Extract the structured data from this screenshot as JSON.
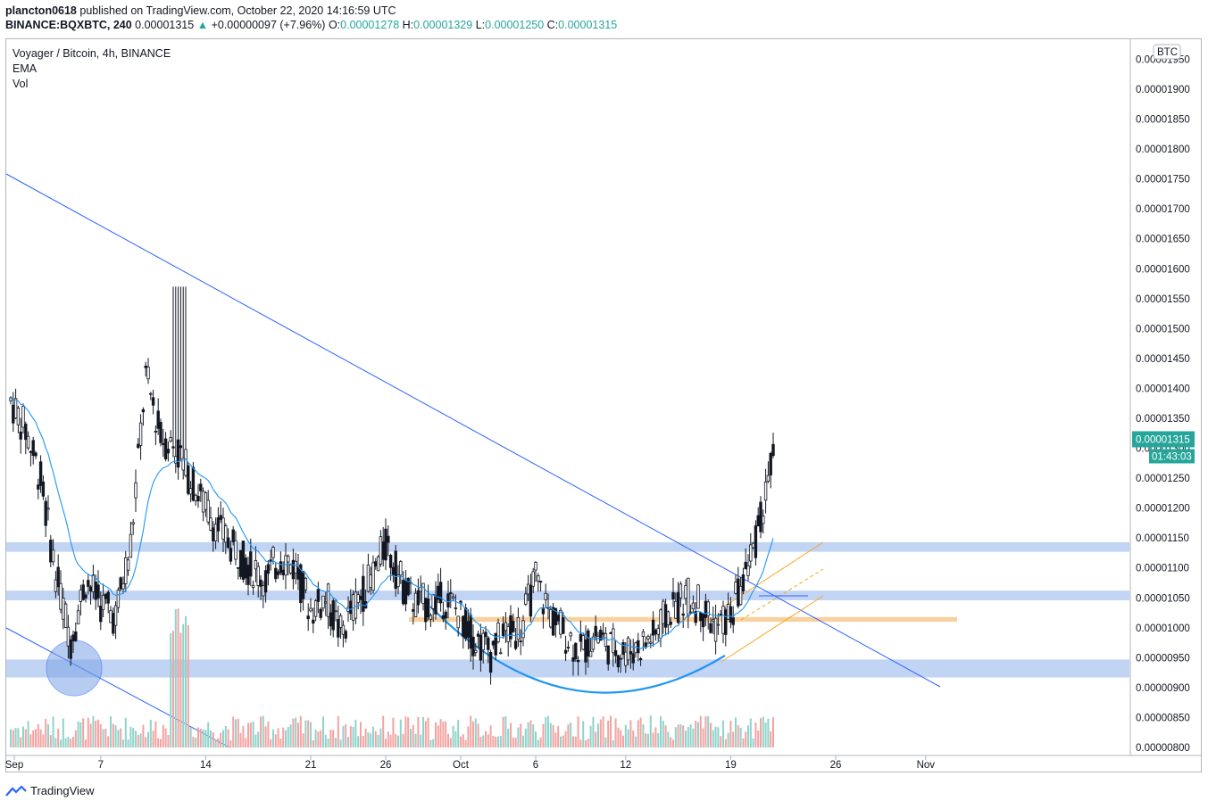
{
  "header": {
    "author": "plancton0618",
    "published_text": " published on TradingView.com, October 22, 2020 14:16:59 UTC",
    "symbol": "BINANCE:BQXBTC, 240",
    "last": "0.00001315",
    "change": "+0.00000097 (+7.96%)",
    "o_label": "O:",
    "o_val": "0.00001278",
    "h_label": "H:",
    "h_val": "0.00001329",
    "l_label": "L:",
    "l_val": "0.00001250",
    "c_label": "C:",
    "c_val": "0.00001315"
  },
  "legend": {
    "title": "Voyager / Bitcoin, 4h, BINANCE",
    "ema": "EMA",
    "vol": "Vol"
  },
  "footer": {
    "brand": "TradingView"
  },
  "price_axis": {
    "currency": "BTC",
    "price_tag": "0.00001315",
    "countdown": "01:43:03"
  },
  "colors": {
    "up": "#26a69a",
    "down": "#ef5350",
    "candle": "#131722",
    "trendline": "#2962ff",
    "ema": "#2196f3",
    "zone": "#aec6f0",
    "orange_zone": "#f7c98f"
  },
  "chart_data": {
    "type": "line",
    "title": "Voyager / Bitcoin, 4h, BINANCE",
    "y_ticks": [
      "0.00001950",
      "0.00001900",
      "0.00001850",
      "0.00001800",
      "0.00001750",
      "0.00001700",
      "0.00001650",
      "0.00001600",
      "0.00001550",
      "0.00001500",
      "0.00001450",
      "0.00001400",
      "0.00001350",
      "0.00001300",
      "0.00001250",
      "0.00001200",
      "0.00001150",
      "0.00001100",
      "0.00001050",
      "0.00001000",
      "0.00000950",
      "0.00000900",
      "0.00000850",
      "0.00000800"
    ],
    "x_ticks": [
      "Sep",
      "7",
      "14",
      "21",
      "26",
      "Oct",
      "6",
      "12",
      "19",
      "26",
      "Nov"
    ],
    "ylim": [
      7.95e-06,
      1.96e-05
    ],
    "grid": false,
    "series": [
      {
        "x": [
          "Sep 1",
          "Sep 2",
          "Sep 3",
          "Sep 4",
          "Sep 5",
          "Sep 6",
          "Sep 7",
          "Sep 8",
          "Sep 9",
          "Sep 10",
          "Sep 11",
          "Sep 12",
          "Sep 13",
          "Sep 14",
          "Sep 15",
          "Sep 16",
          "Sep 17",
          "Sep 18",
          "Sep 19",
          "Sep 20",
          "Sep 21",
          "Sep 22",
          "Sep 23",
          "Sep 24",
          "Sep 25",
          "Sep 26",
          "Sep 27",
          "Sep 28",
          "Sep 29",
          "Sep 30",
          "Oct 1",
          "Oct 2",
          "Oct 3",
          "Oct 4",
          "Oct 5",
          "Oct 6",
          "Oct 7",
          "Oct 8",
          "Oct 9",
          "Oct 10",
          "Oct 11",
          "Oct 12",
          "Oct 13",
          "Oct 14",
          "Oct 15",
          "Oct 16",
          "Oct 17",
          "Oct 18",
          "Oct 19",
          "Oct 20",
          "Oct 21",
          "Oct 22"
        ],
        "values": [
          1.38e-05,
          1.33e-05,
          1.25e-05,
          1.09e-05,
          9.8e-06,
          1.08e-05,
          1.04e-05,
          1.02e-05,
          1.14e-05,
          1.42e-05,
          1.32e-05,
          1.3e-05,
          1.25e-05,
          1.2e-05,
          1.16e-05,
          1.13e-05,
          1.1e-05,
          1.08e-05,
          1.12e-05,
          1.1e-05,
          1.03e-05,
          1.05e-05,
          9.9e-06,
          1.04e-05,
          1.08e-05,
          1.14e-05,
          1.08e-05,
          1.04e-05,
          1.04e-05,
          1.05e-05,
          1.02e-05,
          9.8e-06,
          9.6e-06,
          9.9e-06,
          1e-05,
          1.08e-05,
          1.02e-05,
          9.9e-06,
          9.6e-06,
          9.9e-06,
          9.7e-06,
          9.6e-06,
          9.7e-06,
          9.9e-06,
          1.03e-05,
          1.05e-05,
          1.04e-05,
          1e-05,
          1.02e-05,
          1.09e-05,
          1.18e-05,
          1.315e-05
        ]
      }
    ]
  }
}
